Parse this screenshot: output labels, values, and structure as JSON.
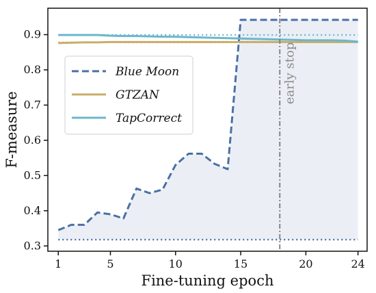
{
  "chart_data": {
    "type": "line",
    "xlabel": "Fine-tuning epoch",
    "ylabel": "F-measure",
    "xlim": [
      0.2,
      24.7
    ],
    "ylim": [
      0.285,
      0.975
    ],
    "xticks": [
      1,
      5,
      10,
      15,
      20,
      24
    ],
    "yticks": [
      0.3,
      0.4,
      0.5,
      0.6,
      0.7,
      0.8,
      0.9
    ],
    "ytick_labels": [
      "0.3",
      "0.4",
      "0.5",
      "0.6",
      "0.7",
      "0.8",
      "0.9"
    ],
    "legend_position": "upper-left",
    "series": [
      {
        "name": "Blue Moon",
        "color": "#4a6fa5",
        "style": "dashed",
        "fill": true,
        "baseline": 0.318,
        "x": [
          1,
          2,
          3,
          4,
          5,
          6,
          7,
          8,
          9,
          10,
          11,
          12,
          13,
          14,
          15,
          16,
          17,
          18,
          19,
          20,
          21,
          22,
          23,
          24
        ],
        "values": [
          0.345,
          0.36,
          0.36,
          0.395,
          0.39,
          0.378,
          0.463,
          0.45,
          0.46,
          0.53,
          0.562,
          0.562,
          0.533,
          0.518,
          0.942,
          0.942,
          0.942,
          0.942,
          0.942,
          0.942,
          0.942,
          0.942,
          0.942,
          0.942
        ]
      },
      {
        "name": "GTZAN",
        "color": "#c9ad6a",
        "style": "solid",
        "fill": false,
        "baseline": 0.878,
        "x": [
          1,
          2,
          3,
          4,
          5,
          6,
          7,
          8,
          9,
          10,
          11,
          12,
          13,
          14,
          15,
          16,
          17,
          18,
          19,
          20,
          21,
          22,
          23,
          24
        ],
        "values": [
          0.876,
          0.877,
          0.878,
          0.878,
          0.879,
          0.879,
          0.879,
          0.879,
          0.879,
          0.879,
          0.879,
          0.879,
          0.879,
          0.879,
          0.879,
          0.879,
          0.879,
          0.879,
          0.879,
          0.879,
          0.879,
          0.879,
          0.879,
          0.879
        ]
      },
      {
        "name": "TapCorrect",
        "color": "#6bb7cc",
        "style": "solid",
        "fill": false,
        "baseline": 0.899,
        "x": [
          1,
          2,
          3,
          4,
          5,
          6,
          7,
          8,
          9,
          10,
          11,
          12,
          13,
          14,
          15,
          16,
          17,
          18,
          19,
          20,
          21,
          22,
          23,
          24
        ],
        "values": [
          0.899,
          0.899,
          0.899,
          0.899,
          0.897,
          0.896,
          0.896,
          0.895,
          0.894,
          0.894,
          0.893,
          0.892,
          0.891,
          0.89,
          0.889,
          0.888,
          0.887,
          0.886,
          0.885,
          0.884,
          0.884,
          0.884,
          0.883,
          0.88
        ]
      }
    ],
    "annotations": [
      {
        "type": "vline",
        "x": 18,
        "label": "early stop",
        "color": "#7a7a7a"
      }
    ]
  }
}
